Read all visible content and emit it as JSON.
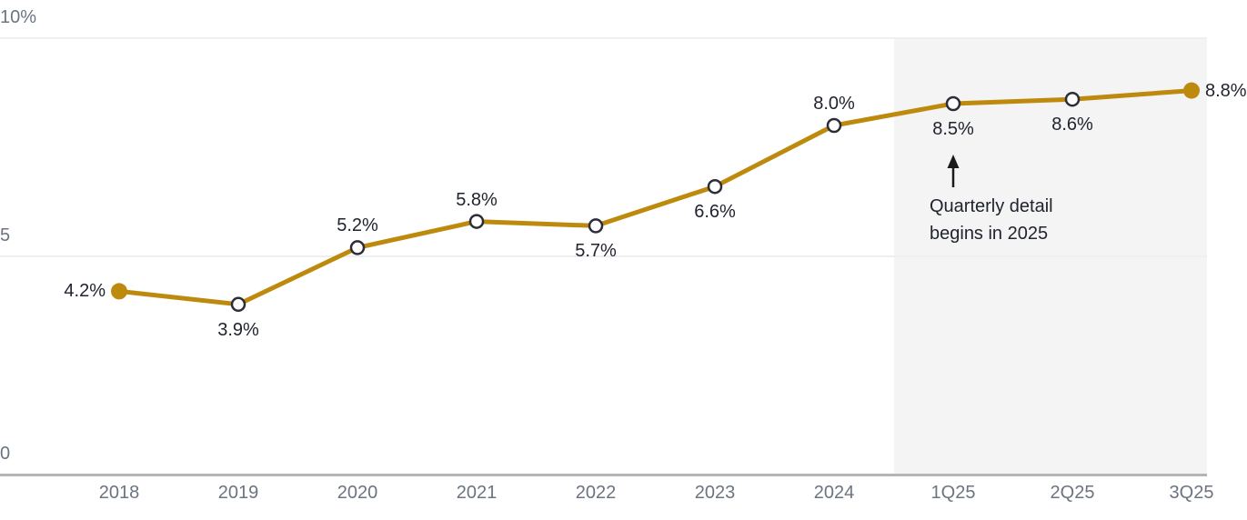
{
  "chart_data": {
    "type": "line",
    "categories": [
      "2018",
      "2019",
      "2020",
      "2021",
      "2022",
      "2023",
      "2024",
      "1Q25",
      "2Q25",
      "3Q25"
    ],
    "values": [
      4.2,
      3.9,
      5.2,
      5.8,
      5.7,
      6.6,
      8.0,
      8.5,
      8.6,
      8.8
    ],
    "data_labels": [
      "4.2%",
      "3.9%",
      "5.2%",
      "5.8%",
      "5.7%",
      "6.6%",
      "8.0%",
      "8.5%",
      "8.6%",
      "8.8%"
    ],
    "label_positions": [
      "left",
      "below",
      "above",
      "above",
      "below",
      "below",
      "above",
      "below",
      "below",
      "right"
    ],
    "marker_styles": [
      "filled",
      "open",
      "open",
      "open",
      "open",
      "open",
      "open",
      "open",
      "open",
      "filled"
    ],
    "title": "",
    "xlabel": "",
    "ylabel": "",
    "ylim": [
      0,
      10
    ],
    "y_ticks": [
      {
        "value": 0,
        "label": "0"
      },
      {
        "value": 5,
        "label": "5"
      },
      {
        "value": 10,
        "label": "10%"
      }
    ],
    "grid": "horizontal",
    "legend": "none",
    "shaded_region": {
      "from_between": [
        "2024",
        "1Q25"
      ],
      "to": "right-edge-of-plot",
      "covers": [
        "1Q25",
        "2Q25",
        "3Q25"
      ]
    },
    "annotation": {
      "line1": "Quarterly detail",
      "line2": "begins in 2025",
      "arrow": "up",
      "points_to": "1Q25 value 8.5%"
    }
  },
  "colors": {
    "line": "#BE8A0D",
    "marker_fill": "#ffffff",
    "marker_stroke": "#2b2e38",
    "data_label": "#20242e",
    "axis_label": "#6b7480",
    "gridline": "#efefef",
    "axis_line": "#b3b5b8",
    "shade": "#f4f4f4",
    "background": "#ffffff",
    "annotation_text": "#20242e",
    "arrow": "#1a1a1a"
  }
}
